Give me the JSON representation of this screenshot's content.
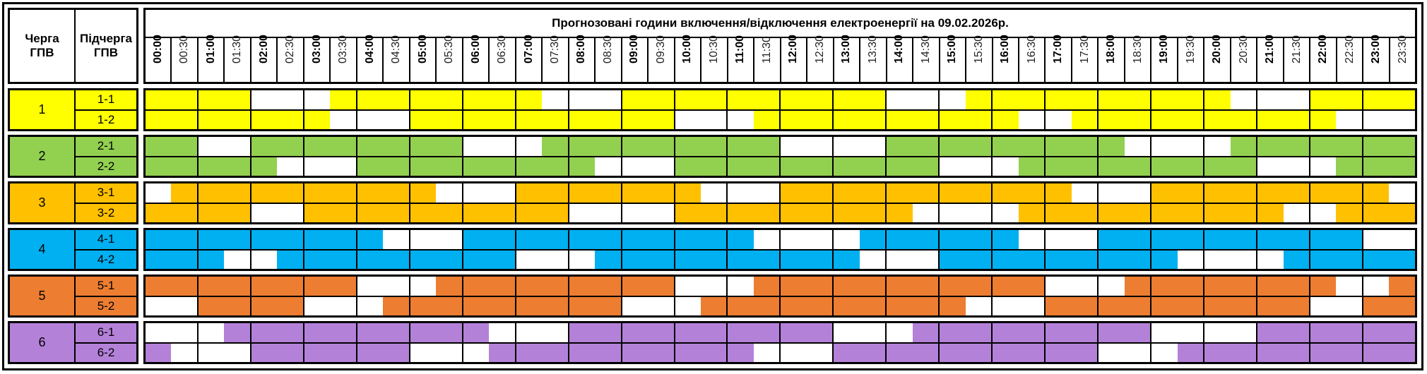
{
  "header": {
    "queue_label": "Черга\nГПВ",
    "subqueue_label": "Підчерга\nГПВ",
    "title": "Прогнозовані години включення/відключення електроенергії на 09.02.2026р."
  },
  "times": [
    "00:00",
    "00:30",
    "01:00",
    "01:30",
    "02:00",
    "02:30",
    "03:00",
    "03:30",
    "04:00",
    "04:30",
    "05:00",
    "05:30",
    "06:00",
    "06:30",
    "07:00",
    "07:30",
    "08:00",
    "08:30",
    "09:00",
    "09:30",
    "10:00",
    "10:30",
    "11:00",
    "11:30",
    "12:00",
    "12:30",
    "13:00",
    "13:30",
    "14:00",
    "14:30",
    "15:00",
    "15:30",
    "16:00",
    "16:30",
    "17:00",
    "17:30",
    "18:00",
    "18:30",
    "19:00",
    "19:30",
    "20:00",
    "20:30",
    "21:00",
    "21:30",
    "22:00",
    "22:30",
    "23:00",
    "23:30"
  ],
  "legend_encoding": {
    "filled": "1",
    "white": "0"
  },
  "groups": [
    {
      "label": "1",
      "color": "#FFFF00",
      "subgroups": [
        {
          "label": "1-1",
          "schedule": "111100011111111000111111111100011111111110001111"
        },
        {
          "label": "1-2",
          "schedule": "111111100011111111110001111111111001111111111000"
        }
      ]
    },
    {
      "label": "2",
      "color": "#92D050",
      "subgroups": [
        {
          "label": "2-1",
          "schedule": "110011111111000111111111000011111111100001111111"
        },
        {
          "label": "2-2",
          "schedule": "111110001111111110001111111111000111111111000111"
        }
      ]
    },
    {
      "label": "3",
      "color": "#FFC000",
      "subgroups": [
        {
          "label": "3-1",
          "schedule": "011111111110001111111000111111111110001111111110"
        },
        {
          "label": "3-2",
          "schedule": "111100111111111100001111111110000111111111100111"
        }
      ]
    },
    {
      "label": "4",
      "color": "#00B0F0",
      "subgroups": [
        {
          "label": "4-1",
          "schedule": "111111111000111111111110000111111000111111111100"
        },
        {
          "label": "4-2",
          "schedule": "111001111111110001111111111000111111111000011111"
        }
      ]
    },
    {
      "label": "5",
      "color": "#ED7D31",
      "subgroups": [
        {
          "label": "5-1",
          "schedule": "111111110001111111110001111111111100011111111001"
        },
        {
          "label": "5-2",
          "schedule": "001111000111111111000111111111100011111111110011"
        }
      ]
    },
    {
      "label": "6",
      "color": "#B481D9",
      "subgroups": [
        {
          "label": "6-1",
          "schedule": "000111111111100011111111110001111111110000111111"
        },
        {
          "label": "6-2",
          "schedule": "100011111100011111111110001111111111000111111111"
        }
      ]
    }
  ]
}
